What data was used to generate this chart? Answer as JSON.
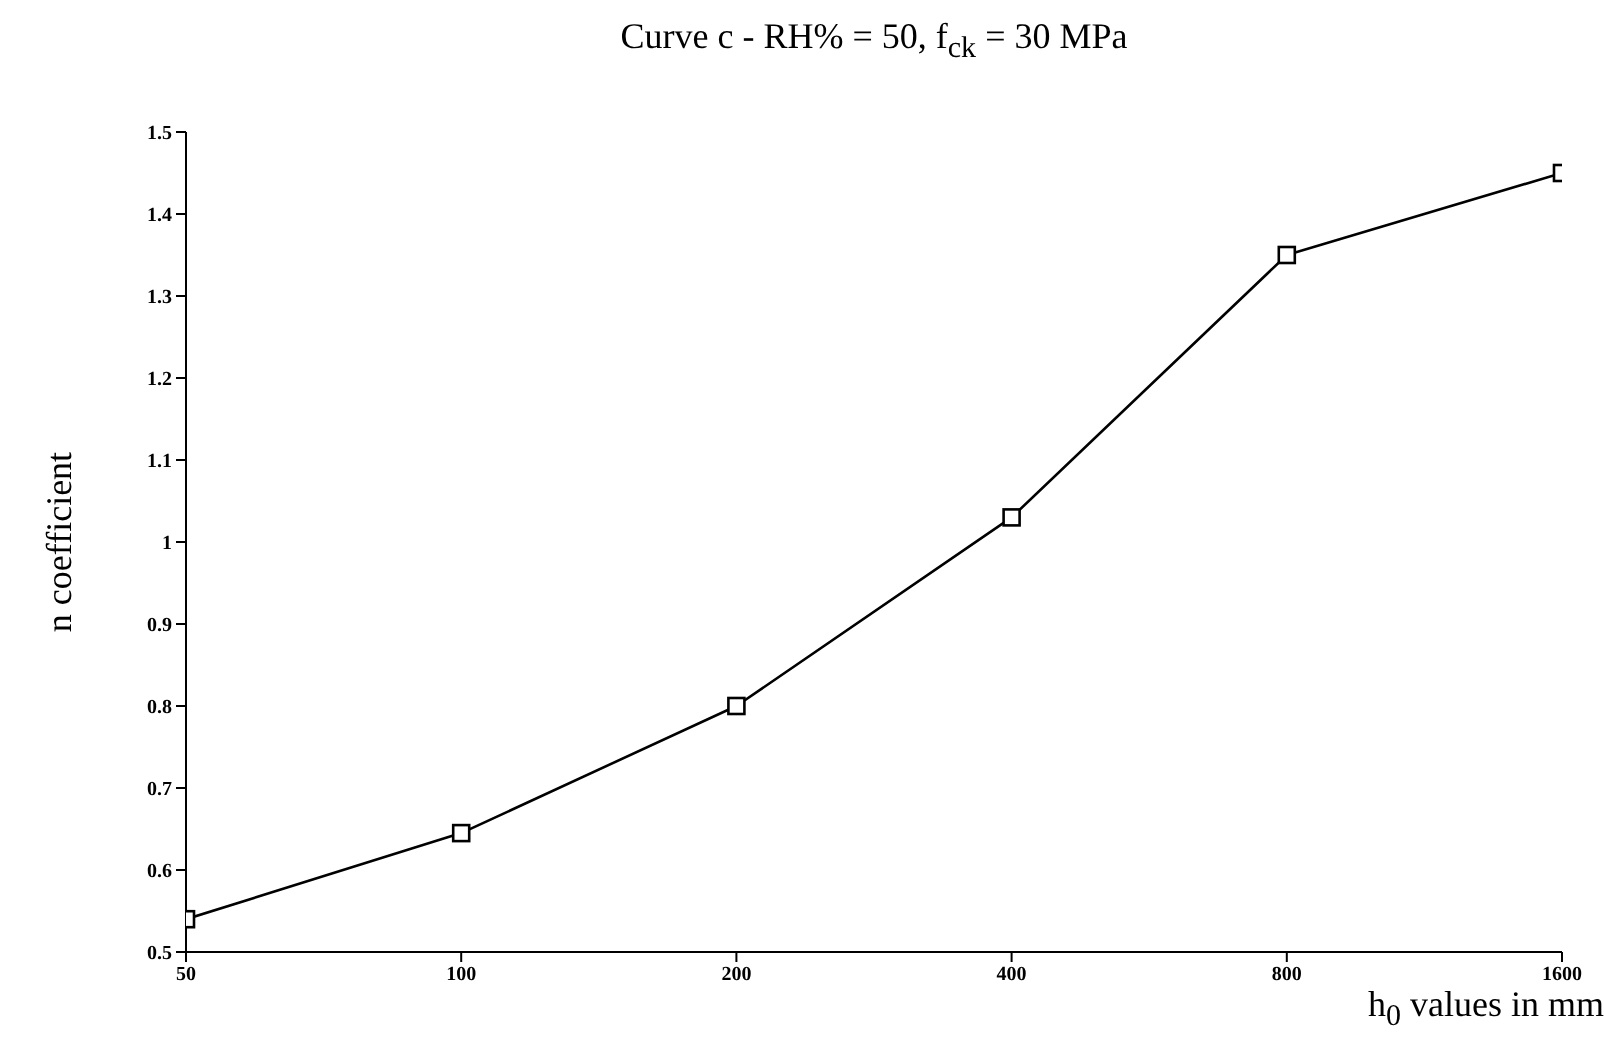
{
  "chart_data": {
    "type": "line",
    "title": "Curve c  -  RH% = 50, f$_{ck}$ = 30 MPa",
    "xlabel": "h$_{0}$ values in mm",
    "ylabel": "n coefficient",
    "x": [
      50,
      100,
      200,
      400,
      800,
      1600
    ],
    "series": [
      {
        "color": "#000000",
        "values": [
          0.54,
          0.645,
          0.8,
          1.03,
          1.35,
          1.45
        ]
      }
    ],
    "log": "x",
    "xlim": [
      50,
      1600
    ],
    "xticks": [
      50,
      100,
      200,
      400,
      800,
      1600
    ],
    "ylim": [
      0.5,
      1.5
    ],
    "yticks": [
      0.5,
      0.6,
      0.7,
      0.8,
      0.9,
      1,
      1.1,
      1.2,
      1.3,
      1.4,
      1.5
    ],
    "grid": false,
    "legend": false,
    "marker": "square",
    "line_style": "solid"
  }
}
